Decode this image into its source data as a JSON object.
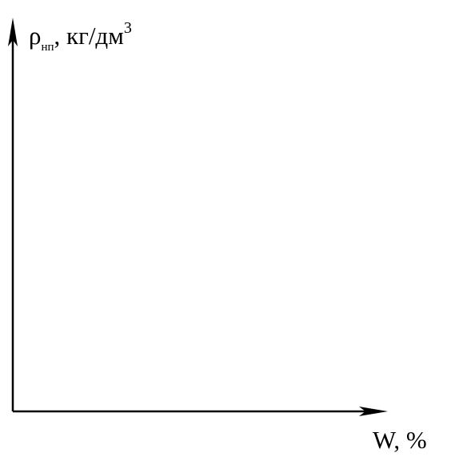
{
  "chart_data": {
    "type": "line",
    "title": "",
    "xlabel": "W, %",
    "ylabel": {
      "symbol": "ρ",
      "subscript": "нп",
      "unit": ", кг/дм",
      "superscript": "3"
    },
    "series": [],
    "grid": false,
    "legend": "none"
  }
}
